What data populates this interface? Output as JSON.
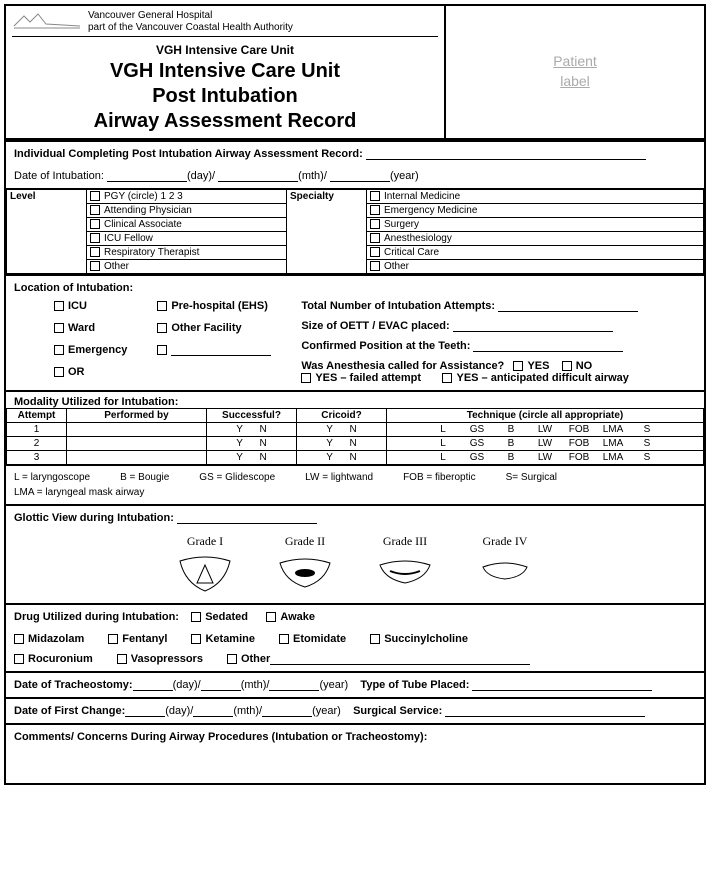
{
  "header": {
    "hospital_line1": "Vancouver General Hospital",
    "hospital_line2": "part of the Vancouver Coastal Health Authority",
    "unit": "VGH Intensive Care Unit",
    "title_line1": "VGH Intensive Care Unit",
    "title_line2": "Post Intubation",
    "title_line3": "Airway Assessment Record",
    "patient_label_line1": "Patient",
    "patient_label_line2": "label"
  },
  "s1": {
    "completing": "Individual Completing Post Intubation Airway Assessment Record:",
    "date_label": "Date of Intubation:",
    "day": "(day)/",
    "mth": "(mth)/",
    "year": "(year)"
  },
  "level": {
    "label": "Level",
    "items": [
      "PGY (circle)    1    2    3",
      "Attending Physician",
      "Clinical Associate",
      "ICU Fellow",
      "Respiratory Therapist",
      "Other"
    ],
    "specialty_label": "Specialty",
    "specialty_items": [
      "Internal Medicine",
      "Emergency Medicine",
      "Surgery",
      "Anesthesiology",
      "Critical Care",
      "Other"
    ]
  },
  "location": {
    "label": "Location of Intubation:",
    "left_col": [
      "ICU",
      "Ward",
      "Emergency",
      "OR"
    ],
    "mid_col": [
      "Pre-hospital (EHS)",
      "Other Facility",
      ""
    ],
    "r1": "Total Number of Intubation Attempts:",
    "r2": "Size of OETT / EVAC placed:",
    "r3": "Confirmed Position at the Teeth:",
    "r4": "Was Anesthesia called for Assistance?",
    "yes": "YES",
    "no": "NO",
    "r5a": "YES – failed attempt",
    "r5b": "YES – anticipated difficult airway"
  },
  "modality": {
    "label": "Modality Utilized for Intubation:",
    "headers": [
      "Attempt",
      "Performed by",
      "Successful?",
      "Cricoid?",
      "Technique (circle all appropriate)"
    ],
    "attempts": [
      "1",
      "2",
      "3"
    ],
    "yn": [
      "Y",
      "N"
    ],
    "tech": [
      "L",
      "GS",
      "B",
      "LW",
      "FOB",
      "LMA",
      "S"
    ],
    "legend": [
      "L = laryngoscope",
      "B = Bougie",
      "GS = Glidescope",
      "LW = lightwand",
      "FOB = fiberoptic",
      "S= Surgical",
      "LMA = laryngeal mask airway"
    ]
  },
  "glottic": {
    "label": "Glottic View during Intubation:",
    "grades": [
      "Grade I",
      "Grade II",
      "Grade III",
      "Grade IV"
    ]
  },
  "drugs": {
    "label": "Drug Utilized during Intubation:",
    "state": [
      "Sedated",
      "Awake"
    ],
    "list1": [
      "Midazolam",
      "Fentanyl",
      "Ketamine",
      "Etomidate",
      "Succinylcholine"
    ],
    "list2": [
      "Rocuronium",
      "Vasopressors",
      "Other"
    ]
  },
  "trach": {
    "date_label": "Date of Tracheostomy:",
    "day": "(day)/",
    "mth": "(mth)/",
    "year": "(year)",
    "tube_label": "Type of Tube Placed:"
  },
  "first_change": {
    "date_label": "Date of First Change:",
    "day": "(day)/",
    "mth": "(mth)/",
    "year": "(year)",
    "service_label": "Surgical Service:"
  },
  "comments": {
    "label": "Comments/ Concerns During Airway Procedures (Intubation or Tracheostomy):"
  }
}
